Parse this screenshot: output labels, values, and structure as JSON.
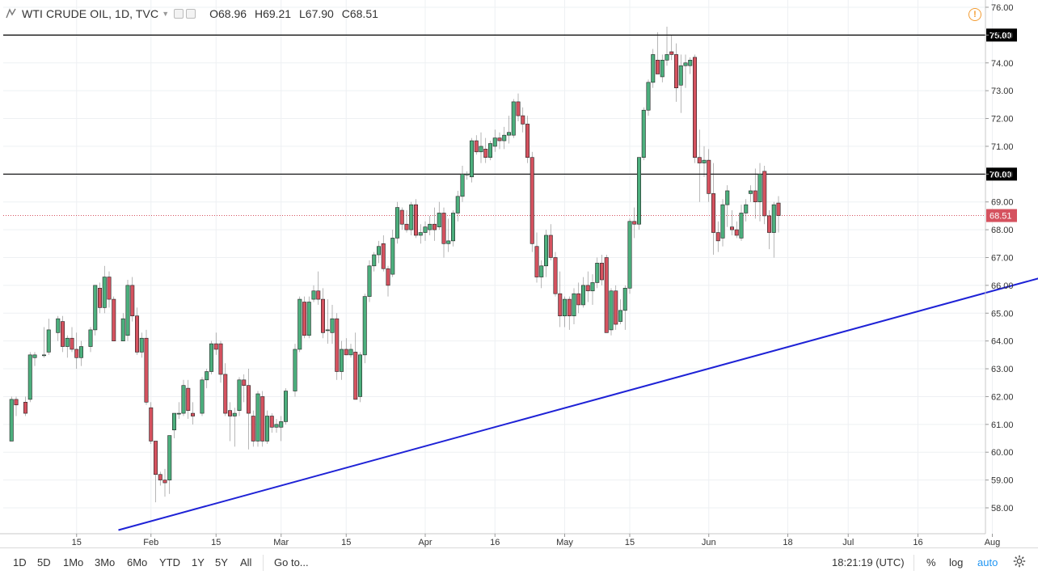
{
  "header": {
    "title": "WTI CRUDE OIL, 1D, TVC",
    "open_label": "O",
    "open_value": "68.96",
    "high_label": "H",
    "high_value": "69.21",
    "low_label": "L",
    "low_value": "67.90",
    "close_label": "C",
    "close_value": "68.51",
    "alert_glyph": "!"
  },
  "toolbar": {
    "ranges": [
      "1D",
      "5D",
      "1Mo",
      "3Mo",
      "6Mo",
      "YTD",
      "1Y",
      "5Y",
      "All"
    ],
    "goto_label": "Go to...",
    "time": "18:21:19 (UTC)",
    "percent_label": "%",
    "log_label": "log",
    "auto_label": "auto"
  },
  "chart_data": {
    "type": "candlestick",
    "title": "WTI CRUDE OIL, 1D, TVC",
    "colors": {
      "up": "#4caf7d",
      "down": "#d5525f",
      "trendline": "#1e22d6",
      "levels": "#000000",
      "last_price": "#d5525f"
    },
    "ylim": [
      57.2,
      76.2
    ],
    "y_ticks": [
      "58.00",
      "59.00",
      "60.00",
      "61.00",
      "62.00",
      "63.00",
      "64.00",
      "65.00",
      "66.00",
      "67.00",
      "68.00",
      "69.00",
      "70.00",
      "71.00",
      "72.00",
      "73.00",
      "74.00",
      "75.00",
      "76.00"
    ],
    "x_tick_labels": [
      {
        "label": "15",
        "day": 15
      },
      {
        "label": "Feb",
        "day": 31
      },
      {
        "label": "15",
        "day": 45
      },
      {
        "label": "Mar",
        "day": 59
      },
      {
        "label": "15",
        "day": 73
      },
      {
        "label": "Apr",
        "day": 90
      },
      {
        "label": "16",
        "day": 105
      },
      {
        "label": "May",
        "day": 120
      },
      {
        "label": "15",
        "day": 134
      },
      {
        "label": "Jun",
        "day": 151
      },
      {
        "label": "18",
        "day": 168
      },
      {
        "label": "Jul",
        "day": 181
      },
      {
        "label": "16",
        "day": 196
      },
      {
        "label": "Aug",
        "day": 212
      }
    ],
    "horizontal_levels": [
      {
        "value": 75.0,
        "label": "75.00"
      },
      {
        "value": 70.0,
        "label": "70.00"
      }
    ],
    "last_price": {
      "value": 68.51,
      "label": "68.51"
    },
    "trendline": {
      "start": {
        "day": 24,
        "price": 57.2
      },
      "end": {
        "day": 223,
        "price": 66.3
      }
    },
    "candles": [
      {
        "d": 1,
        "o": 60.4,
        "h": 62.0,
        "l": 60.4,
        "c": 61.9
      },
      {
        "d": 2,
        "o": 61.9,
        "h": 62.0,
        "l": 61.3,
        "c": 61.7
      },
      {
        "d": 4,
        "o": 61.8,
        "h": 62.0,
        "l": 61.3,
        "c": 61.4
      },
      {
        "d": 5,
        "o": 61.9,
        "h": 63.6,
        "l": 61.8,
        "c": 63.5
      },
      {
        "d": 6,
        "o": 63.4,
        "h": 63.6,
        "l": 63.1,
        "c": 63.5
      },
      {
        "d": 8,
        "o": 63.5,
        "h": 64.5,
        "l": 63.4,
        "c": 63.5
      },
      {
        "d": 9,
        "o": 63.6,
        "h": 64.8,
        "l": 63.5,
        "c": 64.4
      },
      {
        "d": 11,
        "o": 64.3,
        "h": 64.9,
        "l": 64.0,
        "c": 64.8
      },
      {
        "d": 12,
        "o": 64.7,
        "h": 64.9,
        "l": 63.6,
        "c": 63.8
      },
      {
        "d": 13,
        "o": 63.8,
        "h": 64.2,
        "l": 63.4,
        "c": 64.1
      },
      {
        "d": 14,
        "o": 64.1,
        "h": 64.5,
        "l": 63.6,
        "c": 63.7
      },
      {
        "d": 15,
        "o": 63.7,
        "h": 64.3,
        "l": 63.0,
        "c": 63.4
      },
      {
        "d": 16,
        "o": 63.4,
        "h": 64.0,
        "l": 63.1,
        "c": 63.8
      },
      {
        "d": 18,
        "o": 63.8,
        "h": 64.5,
        "l": 63.6,
        "c": 64.4
      },
      {
        "d": 19,
        "o": 64.4,
        "h": 66.0,
        "l": 64.2,
        "c": 66.0
      },
      {
        "d": 20,
        "o": 65.9,
        "h": 66.1,
        "l": 65.0,
        "c": 65.2
      },
      {
        "d": 21,
        "o": 65.2,
        "h": 66.7,
        "l": 65.0,
        "c": 66.3
      },
      {
        "d": 22,
        "o": 66.3,
        "h": 66.5,
        "l": 65.2,
        "c": 65.5
      },
      {
        "d": 23,
        "o": 65.5,
        "h": 65.6,
        "l": 64.0,
        "c": 64.0
      },
      {
        "d": 25,
        "o": 64.0,
        "h": 65.0,
        "l": 64.0,
        "c": 64.8
      },
      {
        "d": 26,
        "o": 64.2,
        "h": 66.2,
        "l": 64.0,
        "c": 66.0
      },
      {
        "d": 27,
        "o": 66.0,
        "h": 66.3,
        "l": 64.7,
        "c": 64.9
      },
      {
        "d": 28,
        "o": 64.9,
        "h": 65.2,
        "l": 63.5,
        "c": 63.6
      },
      {
        "d": 29,
        "o": 63.6,
        "h": 64.3,
        "l": 63.4,
        "c": 64.1
      },
      {
        "d": 30,
        "o": 64.1,
        "h": 64.4,
        "l": 61.7,
        "c": 61.8
      },
      {
        "d": 31,
        "o": 61.6,
        "h": 61.8,
        "l": 60.3,
        "c": 60.4
      },
      {
        "d": 32,
        "o": 60.4,
        "h": 60.4,
        "l": 58.2,
        "c": 59.2
      },
      {
        "d": 33,
        "o": 59.2,
        "h": 59.3,
        "l": 58.8,
        "c": 59.0
      },
      {
        "d": 34,
        "o": 59.0,
        "h": 59.4,
        "l": 58.4,
        "c": 58.9
      },
      {
        "d": 35,
        "o": 59.0,
        "h": 60.6,
        "l": 58.5,
        "c": 60.6
      },
      {
        "d": 36,
        "o": 60.8,
        "h": 61.4,
        "l": 60.5,
        "c": 61.4
      },
      {
        "d": 37,
        "o": 61.4,
        "h": 61.8,
        "l": 61.2,
        "c": 61.4
      },
      {
        "d": 38,
        "o": 61.4,
        "h": 62.6,
        "l": 61.3,
        "c": 62.4
      },
      {
        "d": 39,
        "o": 62.3,
        "h": 62.6,
        "l": 61.2,
        "c": 61.5
      },
      {
        "d": 40,
        "o": 61.4,
        "h": 61.8,
        "l": 61.0,
        "c": 61.3
      },
      {
        "d": 42,
        "o": 61.4,
        "h": 62.7,
        "l": 61.3,
        "c": 62.6
      },
      {
        "d": 43,
        "o": 62.6,
        "h": 63.0,
        "l": 62.3,
        "c": 62.9
      },
      {
        "d": 44,
        "o": 62.9,
        "h": 64.0,
        "l": 62.8,
        "c": 63.9
      },
      {
        "d": 45,
        "o": 63.9,
        "h": 64.3,
        "l": 63.5,
        "c": 63.7
      },
      {
        "d": 46,
        "o": 63.9,
        "h": 64.0,
        "l": 62.5,
        "c": 62.8
      },
      {
        "d": 47,
        "o": 62.8,
        "h": 63.2,
        "l": 61.3,
        "c": 61.4
      },
      {
        "d": 48,
        "o": 61.5,
        "h": 61.8,
        "l": 60.4,
        "c": 61.3
      },
      {
        "d": 49,
        "o": 61.3,
        "h": 61.6,
        "l": 60.2,
        "c": 61.4
      },
      {
        "d": 50,
        "o": 61.5,
        "h": 62.7,
        "l": 61.3,
        "c": 62.6
      },
      {
        "d": 51,
        "o": 62.6,
        "h": 62.8,
        "l": 61.8,
        "c": 62.4
      },
      {
        "d": 52,
        "o": 62.4,
        "h": 63.0,
        "l": 60.1,
        "c": 61.4
      },
      {
        "d": 53,
        "o": 61.3,
        "h": 61.5,
        "l": 60.2,
        "c": 60.4
      },
      {
        "d": 54,
        "o": 60.4,
        "h": 62.2,
        "l": 60.2,
        "c": 62.1
      },
      {
        "d": 55,
        "o": 62.0,
        "h": 62.2,
        "l": 60.2,
        "c": 60.4
      },
      {
        "d": 56,
        "o": 60.4,
        "h": 61.5,
        "l": 60.3,
        "c": 61.3
      },
      {
        "d": 57,
        "o": 61.3,
        "h": 61.4,
        "l": 60.7,
        "c": 60.9
      },
      {
        "d": 58,
        "o": 60.9,
        "h": 61.2,
        "l": 60.7,
        "c": 61.0
      },
      {
        "d": 59,
        "o": 60.9,
        "h": 61.3,
        "l": 60.4,
        "c": 61.1
      },
      {
        "d": 60,
        "o": 61.1,
        "h": 62.3,
        "l": 61.0,
        "c": 62.2
      },
      {
        "d": 62,
        "o": 62.2,
        "h": 63.9,
        "l": 62.0,
        "c": 63.7
      },
      {
        "d": 63,
        "o": 63.7,
        "h": 65.6,
        "l": 63.6,
        "c": 65.5
      },
      {
        "d": 64,
        "o": 65.4,
        "h": 65.6,
        "l": 64.1,
        "c": 64.2
      },
      {
        "d": 65,
        "o": 64.2,
        "h": 65.6,
        "l": 64.1,
        "c": 65.4
      },
      {
        "d": 66,
        "o": 65.5,
        "h": 66.0,
        "l": 65.4,
        "c": 65.8
      },
      {
        "d": 67,
        "o": 65.8,
        "h": 66.5,
        "l": 65.3,
        "c": 65.5
      },
      {
        "d": 68,
        "o": 65.5,
        "h": 65.9,
        "l": 64.1,
        "c": 64.3
      },
      {
        "d": 69,
        "o": 64.4,
        "h": 65.5,
        "l": 63.9,
        "c": 64.4
      },
      {
        "d": 70,
        "o": 64.3,
        "h": 65.3,
        "l": 63.9,
        "c": 64.8
      },
      {
        "d": 71,
        "o": 64.8,
        "h": 65.0,
        "l": 62.6,
        "c": 62.9
      },
      {
        "d": 72,
        "o": 62.9,
        "h": 64.0,
        "l": 62.6,
        "c": 63.7
      },
      {
        "d": 73,
        "o": 63.7,
        "h": 64.1,
        "l": 63.5,
        "c": 63.5
      },
      {
        "d": 74,
        "o": 63.5,
        "h": 63.9,
        "l": 63.4,
        "c": 63.7
      },
      {
        "d": 75,
        "o": 63.6,
        "h": 64.3,
        "l": 61.9,
        "c": 61.9
      },
      {
        "d": 76,
        "o": 62.0,
        "h": 63.6,
        "l": 61.8,
        "c": 63.5
      },
      {
        "d": 77,
        "o": 63.5,
        "h": 65.7,
        "l": 63.2,
        "c": 65.6
      },
      {
        "d": 78,
        "o": 65.6,
        "h": 66.9,
        "l": 65.4,
        "c": 66.7
      },
      {
        "d": 79,
        "o": 66.7,
        "h": 67.2,
        "l": 66.5,
        "c": 67.1
      },
      {
        "d": 80,
        "o": 67.1,
        "h": 67.6,
        "l": 66.8,
        "c": 67.4
      },
      {
        "d": 81,
        "o": 67.5,
        "h": 67.8,
        "l": 66.5,
        "c": 66.6
      },
      {
        "d": 82,
        "o": 66.6,
        "h": 66.7,
        "l": 65.6,
        "c": 66.0
      },
      {
        "d": 83,
        "o": 66.4,
        "h": 68.0,
        "l": 66.3,
        "c": 67.7
      },
      {
        "d": 84,
        "o": 67.7,
        "h": 69.0,
        "l": 67.5,
        "c": 68.8
      },
      {
        "d": 85,
        "o": 68.7,
        "h": 68.8,
        "l": 68.0,
        "c": 68.2
      },
      {
        "d": 86,
        "o": 68.2,
        "h": 68.7,
        "l": 67.9,
        "c": 68.0
      },
      {
        "d": 87,
        "o": 68.0,
        "h": 69.0,
        "l": 67.8,
        "c": 68.9
      },
      {
        "d": 88,
        "o": 68.9,
        "h": 69.1,
        "l": 67.7,
        "c": 67.8
      },
      {
        "d": 89,
        "o": 67.8,
        "h": 68.2,
        "l": 67.5,
        "c": 67.9
      },
      {
        "d": 90,
        "o": 67.9,
        "h": 68.3,
        "l": 67.6,
        "c": 68.1
      },
      {
        "d": 91,
        "o": 68.0,
        "h": 68.5,
        "l": 67.8,
        "c": 68.2
      },
      {
        "d": 92,
        "o": 68.2,
        "h": 68.8,
        "l": 67.6,
        "c": 68.0
      },
      {
        "d": 93,
        "o": 68.1,
        "h": 69.0,
        "l": 68.0,
        "c": 68.6
      },
      {
        "d": 94,
        "o": 68.6,
        "h": 68.8,
        "l": 67.0,
        "c": 67.5
      },
      {
        "d": 95,
        "o": 67.5,
        "h": 68.4,
        "l": 67.2,
        "c": 67.6
      },
      {
        "d": 96,
        "o": 67.6,
        "h": 68.7,
        "l": 67.4,
        "c": 68.6
      },
      {
        "d": 97,
        "o": 68.6,
        "h": 69.4,
        "l": 68.3,
        "c": 69.2
      },
      {
        "d": 98,
        "o": 69.2,
        "h": 70.3,
        "l": 69.0,
        "c": 70.0
      },
      {
        "d": 99,
        "o": 70.0,
        "h": 70.1,
        "l": 69.8,
        "c": 70.0
      },
      {
        "d": 100,
        "o": 69.9,
        "h": 71.3,
        "l": 69.7,
        "c": 71.2
      },
      {
        "d": 101,
        "o": 71.2,
        "h": 71.4,
        "l": 70.7,
        "c": 70.8
      },
      {
        "d": 102,
        "o": 70.8,
        "h": 71.5,
        "l": 70.4,
        "c": 71.0
      },
      {
        "d": 103,
        "o": 70.9,
        "h": 71.3,
        "l": 70.4,
        "c": 70.6
      },
      {
        "d": 104,
        "o": 70.6,
        "h": 71.2,
        "l": 70.5,
        "c": 71.1
      },
      {
        "d": 105,
        "o": 71.0,
        "h": 71.6,
        "l": 70.8,
        "c": 71.3
      },
      {
        "d": 106,
        "o": 71.3,
        "h": 71.5,
        "l": 70.9,
        "c": 71.2
      },
      {
        "d": 107,
        "o": 71.2,
        "h": 71.7,
        "l": 70.9,
        "c": 71.4
      },
      {
        "d": 108,
        "o": 71.4,
        "h": 72.1,
        "l": 71.1,
        "c": 71.5
      },
      {
        "d": 109,
        "o": 71.4,
        "h": 72.7,
        "l": 71.3,
        "c": 72.6
      },
      {
        "d": 110,
        "o": 72.6,
        "h": 72.9,
        "l": 71.9,
        "c": 72.1
      },
      {
        "d": 111,
        "o": 72.1,
        "h": 72.4,
        "l": 71.5,
        "c": 71.8
      },
      {
        "d": 112,
        "o": 71.8,
        "h": 72.1,
        "l": 70.4,
        "c": 70.6
      },
      {
        "d": 113,
        "o": 70.6,
        "h": 70.8,
        "l": 67.2,
        "c": 67.5
      },
      {
        "d": 114,
        "o": 67.4,
        "h": 67.9,
        "l": 66.1,
        "c": 66.3
      },
      {
        "d": 115,
        "o": 66.3,
        "h": 66.9,
        "l": 65.9,
        "c": 66.7
      },
      {
        "d": 116,
        "o": 66.7,
        "h": 68.0,
        "l": 66.3,
        "c": 67.8
      },
      {
        "d": 117,
        "o": 67.8,
        "h": 68.2,
        "l": 66.9,
        "c": 67.0
      },
      {
        "d": 118,
        "o": 67.0,
        "h": 67.2,
        "l": 65.6,
        "c": 65.7
      },
      {
        "d": 119,
        "o": 65.7,
        "h": 66.5,
        "l": 64.5,
        "c": 64.9
      },
      {
        "d": 120,
        "o": 64.9,
        "h": 65.6,
        "l": 64.5,
        "c": 65.5
      },
      {
        "d": 121,
        "o": 65.5,
        "h": 65.6,
        "l": 64.4,
        "c": 64.9
      },
      {
        "d": 122,
        "o": 64.9,
        "h": 65.9,
        "l": 64.6,
        "c": 65.7
      },
      {
        "d": 123,
        "o": 65.7,
        "h": 66.1,
        "l": 65.0,
        "c": 65.3
      },
      {
        "d": 124,
        "o": 65.3,
        "h": 66.3,
        "l": 65.2,
        "c": 66.0
      },
      {
        "d": 125,
        "o": 66.0,
        "h": 66.5,
        "l": 65.4,
        "c": 65.8
      },
      {
        "d": 126,
        "o": 65.8,
        "h": 66.4,
        "l": 65.3,
        "c": 66.1
      },
      {
        "d": 127,
        "o": 66.1,
        "h": 67.0,
        "l": 65.9,
        "c": 66.8
      },
      {
        "d": 128,
        "o": 66.8,
        "h": 67.1,
        "l": 66.0,
        "c": 66.2
      },
      {
        "d": 129,
        "o": 67.0,
        "h": 67.1,
        "l": 64.3,
        "c": 64.3
      },
      {
        "d": 130,
        "o": 64.4,
        "h": 65.9,
        "l": 64.2,
        "c": 65.8
      },
      {
        "d": 131,
        "o": 65.8,
        "h": 66.0,
        "l": 64.4,
        "c": 64.6
      },
      {
        "d": 132,
        "o": 64.7,
        "h": 65.5,
        "l": 64.6,
        "c": 65.1
      },
      {
        "d": 133,
        "o": 65.1,
        "h": 66.0,
        "l": 64.4,
        "c": 65.9
      },
      {
        "d": 134,
        "o": 65.9,
        "h": 68.4,
        "l": 65.7,
        "c": 68.3
      },
      {
        "d": 135,
        "o": 68.3,
        "h": 68.8,
        "l": 67.7,
        "c": 68.2
      },
      {
        "d": 136,
        "o": 68.2,
        "h": 70.6,
        "l": 68.0,
        "c": 70.6
      },
      {
        "d": 137,
        "o": 70.6,
        "h": 72.4,
        "l": 70.5,
        "c": 72.3
      },
      {
        "d": 138,
        "o": 72.3,
        "h": 73.4,
        "l": 72.1,
        "c": 73.3
      },
      {
        "d": 139,
        "o": 73.3,
        "h": 74.5,
        "l": 73.1,
        "c": 74.3
      },
      {
        "d": 140,
        "o": 74.1,
        "h": 75.1,
        "l": 73.6,
        "c": 73.6
      },
      {
        "d": 141,
        "o": 73.5,
        "h": 74.3,
        "l": 73.3,
        "c": 74.1
      },
      {
        "d": 142,
        "o": 74.1,
        "h": 75.3,
        "l": 73.9,
        "c": 74.3
      },
      {
        "d": 143,
        "o": 74.4,
        "h": 75.0,
        "l": 74.1,
        "c": 74.3
      },
      {
        "d": 144,
        "o": 74.3,
        "h": 74.7,
        "l": 72.6,
        "c": 73.1
      },
      {
        "d": 145,
        "o": 73.2,
        "h": 74.3,
        "l": 72.2,
        "c": 73.9
      },
      {
        "d": 146,
        "o": 73.9,
        "h": 74.3,
        "l": 73.1,
        "c": 74.0
      },
      {
        "d": 147,
        "o": 73.9,
        "h": 74.2,
        "l": 73.6,
        "c": 74.1
      },
      {
        "d": 148,
        "o": 74.2,
        "h": 74.3,
        "l": 70.4,
        "c": 70.6
      },
      {
        "d": 149,
        "o": 70.6,
        "h": 71.6,
        "l": 69.0,
        "c": 70.4
      },
      {
        "d": 150,
        "o": 70.4,
        "h": 71.0,
        "l": 69.9,
        "c": 70.5
      },
      {
        "d": 151,
        "o": 70.5,
        "h": 70.9,
        "l": 69.0,
        "c": 69.3
      },
      {
        "d": 152,
        "o": 69.3,
        "h": 70.4,
        "l": 67.1,
        "c": 67.9
      },
      {
        "d": 153,
        "o": 67.9,
        "h": 68.3,
        "l": 67.2,
        "c": 67.6
      },
      {
        "d": 154,
        "o": 67.7,
        "h": 69.1,
        "l": 67.4,
        "c": 68.9
      },
      {
        "d": 155,
        "o": 68.9,
        "h": 69.6,
        "l": 68.1,
        "c": 69.4
      },
      {
        "d": 156,
        "o": 68.1,
        "h": 68.7,
        "l": 67.8,
        "c": 68.0
      },
      {
        "d": 157,
        "o": 68.0,
        "h": 68.3,
        "l": 67.7,
        "c": 67.8
      },
      {
        "d": 158,
        "o": 67.7,
        "h": 68.9,
        "l": 67.6,
        "c": 68.6
      },
      {
        "d": 159,
        "o": 68.6,
        "h": 69.1,
        "l": 68.3,
        "c": 68.9
      },
      {
        "d": 160,
        "o": 69.3,
        "h": 69.6,
        "l": 69.0,
        "c": 69.4
      },
      {
        "d": 161,
        "o": 69.4,
        "h": 70.2,
        "l": 68.4,
        "c": 69.0
      },
      {
        "d": 162,
        "o": 69.0,
        "h": 70.4,
        "l": 68.3,
        "c": 70.0
      },
      {
        "d": 163,
        "o": 70.1,
        "h": 70.3,
        "l": 68.2,
        "c": 68.5
      },
      {
        "d": 164,
        "o": 68.5,
        "h": 68.7,
        "l": 67.3,
        "c": 67.9
      },
      {
        "d": 165,
        "o": 67.9,
        "h": 69.0,
        "l": 67.0,
        "c": 68.9
      },
      {
        "d": 166,
        "o": 68.96,
        "h": 69.21,
        "l": 67.9,
        "c": 68.51
      }
    ]
  }
}
